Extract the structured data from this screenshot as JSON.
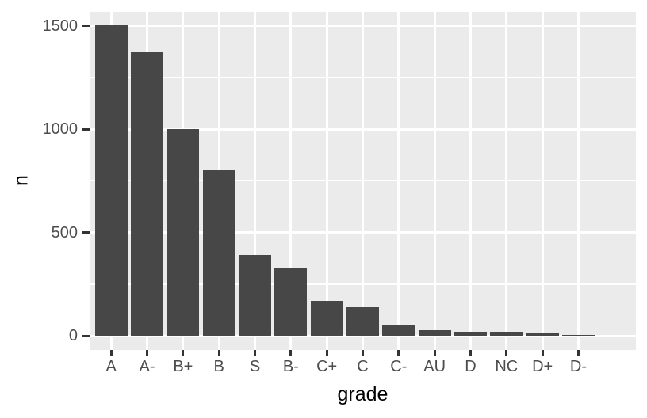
{
  "chart_data": {
    "type": "bar",
    "title": "",
    "xlabel": "grade",
    "ylabel": "n",
    "categories": [
      "A",
      "A-",
      "B+",
      "B",
      "S",
      "B-",
      "C+",
      "C",
      "C-",
      "AU",
      "D",
      "NC",
      "D+",
      "D-"
    ],
    "values": [
      1505,
      1375,
      1000,
      800,
      390,
      330,
      168,
      138,
      55,
      25,
      20,
      20,
      10,
      5
    ],
    "y_major_ticks": [
      0,
      500,
      1000,
      1500
    ],
    "y_minor_ticks": [
      250,
      750,
      1250
    ],
    "y_tick_labels": [
      "0",
      "500",
      "1000",
      "1500"
    ],
    "ylim": [
      -69,
      1569
    ],
    "grid": true,
    "legend_position": "none",
    "layout": "ggplot2-gray-theme",
    "colors": {
      "bar_fill": "#474747",
      "panel_bg": "#EBEBEB",
      "grid": "#FFFFFF",
      "tick_mark": "#333333",
      "tick_label": "#4D4D4D",
      "axis_title": "#000000",
      "figure_bg": "#FFFFFF"
    }
  }
}
